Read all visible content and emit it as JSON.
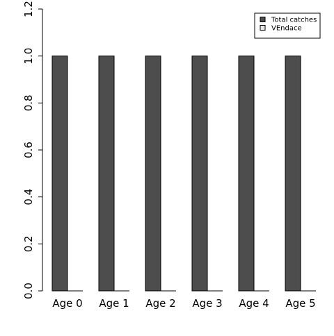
{
  "chart_data": {
    "type": "bar",
    "categories": [
      "Age 0",
      "Age 1",
      "Age 2",
      "Age 3",
      "Age 4",
      "Age 5"
    ],
    "series": [
      {
        "name": "Total catches",
        "values": [
          1.0,
          1.0,
          1.0,
          1.0,
          1.0,
          1.0
        ],
        "color": "#4d4d4d"
      },
      {
        "name": "VEndace",
        "values": [
          0.0,
          0.0,
          0.0,
          0.0,
          0.0,
          0.0
        ],
        "color": "#e6e6e6"
      }
    ],
    "ylim": [
      0,
      1.2
    ],
    "yticks": [
      0.0,
      0.2,
      0.4,
      0.6,
      0.8,
      1.0,
      1.2
    ],
    "ytick_labels": [
      "0.0",
      "0.2",
      "0.4",
      "0.6",
      "0.8",
      "1.0",
      "1.2"
    ],
    "legend_position": "top-right",
    "grid": false
  }
}
